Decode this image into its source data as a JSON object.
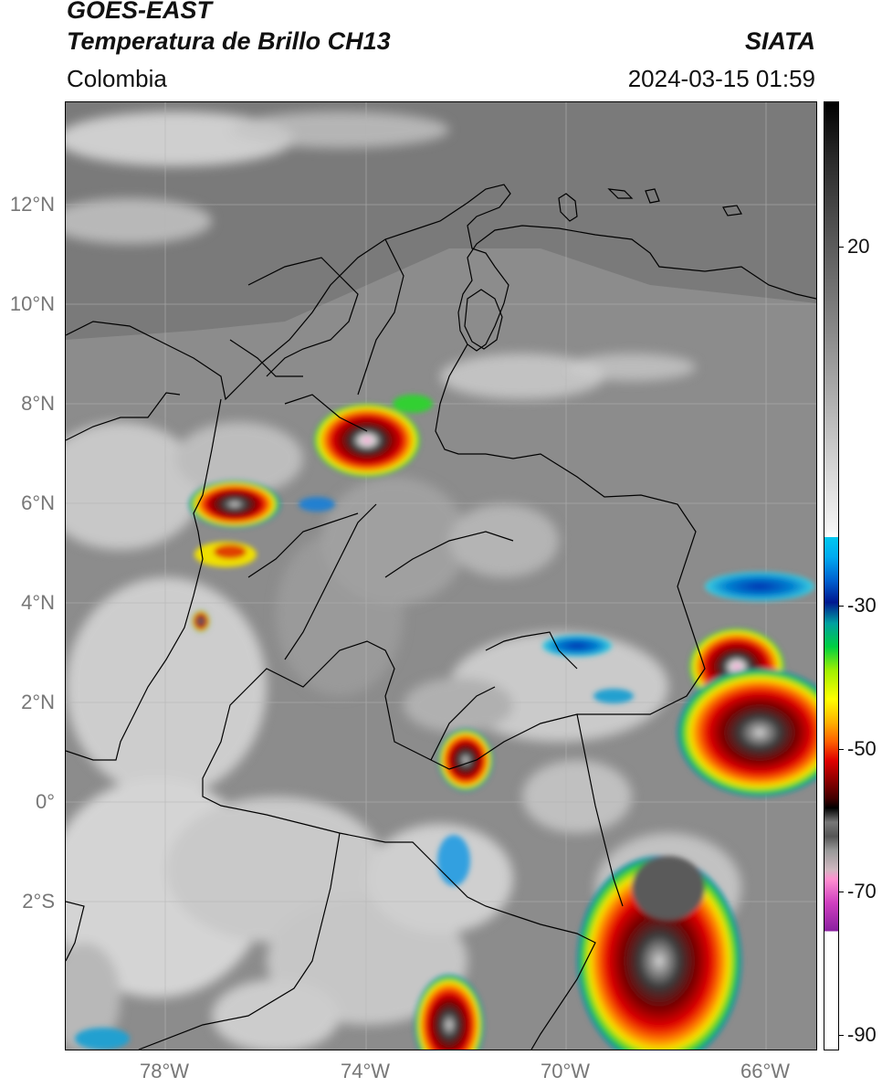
{
  "header": {
    "satellite": "GOES-EAST",
    "product": "Temperatura de Brillo CH13",
    "brand": "SIATA",
    "region": "Colombia",
    "timestamp": "2024-03-15 01:59"
  },
  "axes": {
    "lat_labels": [
      "12°N",
      "10°N",
      "8°N",
      "6°N",
      "4°N",
      "2°N",
      "0°",
      "2°S"
    ],
    "lon_labels": [
      "78°W",
      "74°W",
      "70°W",
      "66°W"
    ]
  },
  "colorbar": {
    "ticks": [
      "20",
      "-30",
      "-50",
      "-70",
      "-90"
    ]
  }
}
